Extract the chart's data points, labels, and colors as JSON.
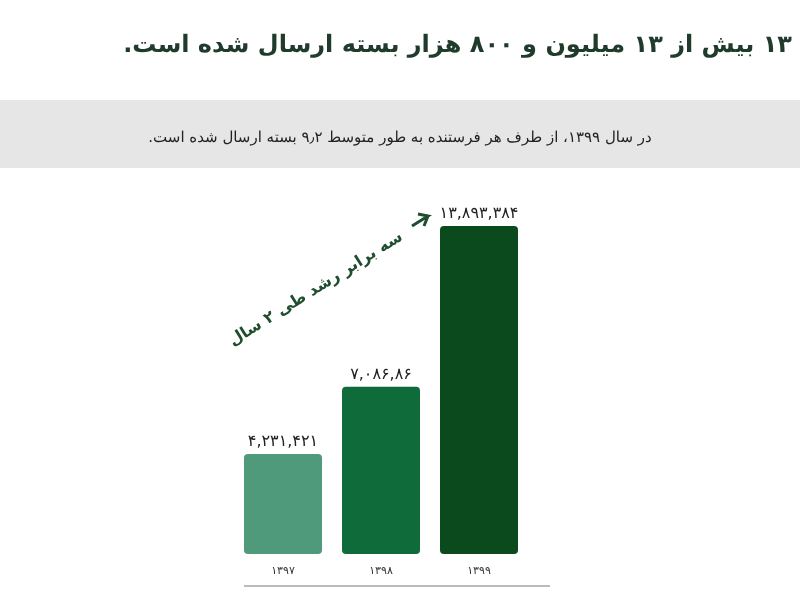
{
  "chart_data": {
    "type": "bar",
    "title": "۱۳ بیش از ۱۳ میلیون و ۸۰۰ هزار بسته ارسال شده است.",
    "subtitle": "در سال ۱۳۹۹، از طرف هر فرستنده به طور متوسط ۹٫۲ بسته ارسال شده است.",
    "categories": [
      "۱۳۹۷",
      "۱۳۹۸",
      "۱۳۹۹"
    ],
    "values": [
      4231421,
      7086860,
      13893384
    ],
    "value_labels": [
      "۴,۲۳۱,۴۲۱",
      "۷,۰۸۶,۸۶",
      "۱۳,۸۹۳,۳۸۴"
    ],
    "colors": [
      "#4e9a7a",
      "#0f6b3a",
      "#0b4a1c"
    ],
    "annotations": [
      "سه برابر رشد طی ۲ سال"
    ]
  }
}
